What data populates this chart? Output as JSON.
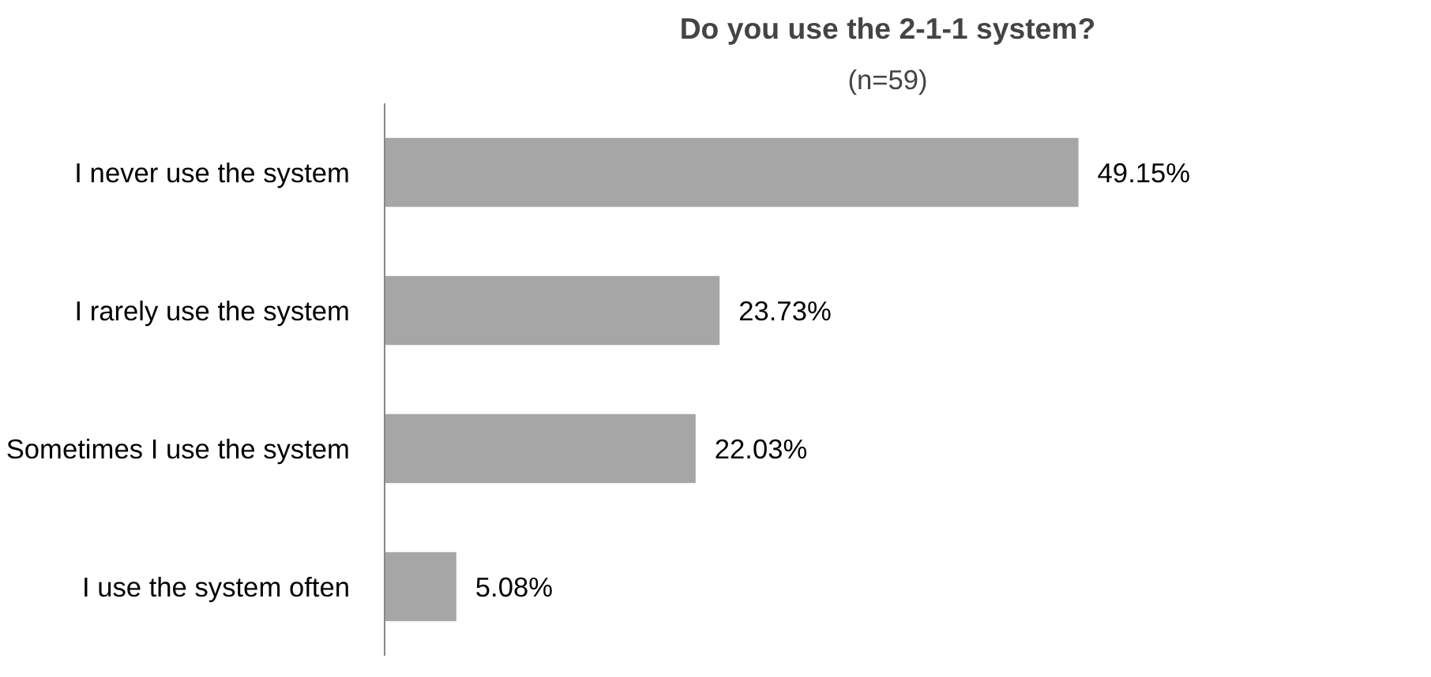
{
  "chart_data": {
    "type": "bar",
    "orientation": "horizontal",
    "title": "Do you use the 2-1-1 system?",
    "subtitle": "(n=59)",
    "categories": [
      "I never use the system",
      "I rarely use the system",
      "Sometimes I use the system",
      "I use the system often"
    ],
    "values": [
      49.15,
      23.73,
      22.03,
      5.08
    ],
    "value_labels": [
      "49.15%",
      "23.73%",
      "22.03%",
      "5.08%"
    ],
    "color": "#a6a6a6",
    "grid": false
  }
}
